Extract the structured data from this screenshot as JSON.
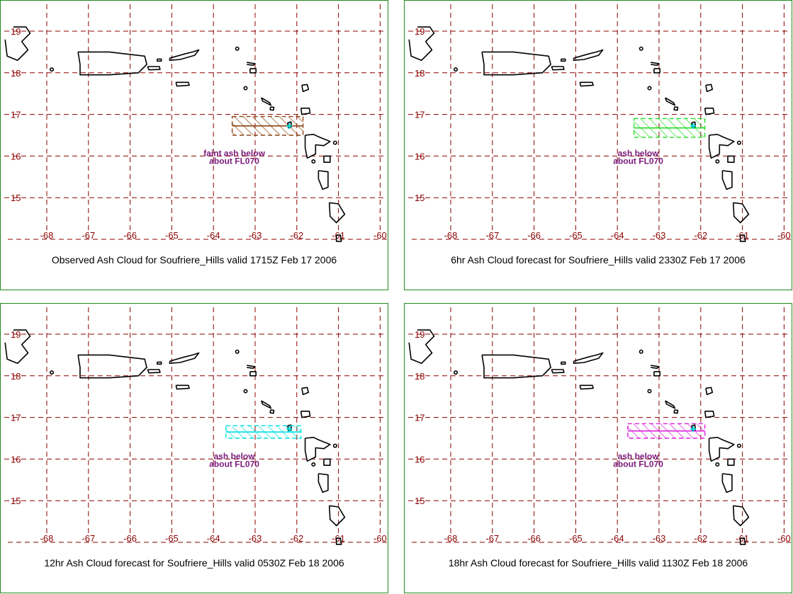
{
  "map": {
    "lon_ticks": [
      "-68",
      "-67",
      "-66",
      "-65",
      "-64",
      "-63",
      "-62",
      "-61",
      "-60"
    ],
    "lat_ticks": [
      "19",
      "18",
      "17",
      "16",
      "15"
    ],
    "grid": true,
    "colors": {
      "grid": "#8b0000",
      "border": "#1f8a1f",
      "coast": "#000000",
      "note": "#7a1a7a"
    }
  },
  "panels": [
    {
      "title": "Observed Ash Cloud for Soufriere_Hills valid 1715Z Feb 17 2006",
      "note_line1": "faint ash below",
      "note_line2": "about FL070",
      "cloud_color": "#8b4513",
      "cloud": {
        "west_lon": -63.55,
        "east_lon": -61.85,
        "north_lat": 16.95,
        "south_lat": 16.5
      }
    },
    {
      "title": "6hr Ash Cloud forecast for Soufriere_Hills valid 2330Z Feb 17 2006",
      "note_line1": "ash below",
      "note_line2": "about FL070",
      "cloud_color": "#22dd22",
      "cloud": {
        "west_lon": -63.6,
        "east_lon": -61.9,
        "north_lat": 16.9,
        "south_lat": 16.45
      }
    },
    {
      "title": "12hr Ash Cloud forecast for Soufriere_Hills valid 0530Z Feb 18 2006",
      "note_line1": "ash below",
      "note_line2": "about FL070",
      "cloud_color": "#00e0e0",
      "cloud": {
        "west_lon": -63.7,
        "east_lon": -61.9,
        "north_lat": 16.8,
        "south_lat": 16.5
      }
    },
    {
      "title": "18hr Ash Cloud forecast for Soufriere_Hills valid 1130Z Feb 18 2006",
      "note_line1": "ash below",
      "note_line2": "about FL070",
      "cloud_color": "#dd22dd",
      "cloud": {
        "west_lon": -63.75,
        "east_lon": -61.9,
        "north_lat": 16.85,
        "south_lat": 16.5
      }
    }
  ]
}
